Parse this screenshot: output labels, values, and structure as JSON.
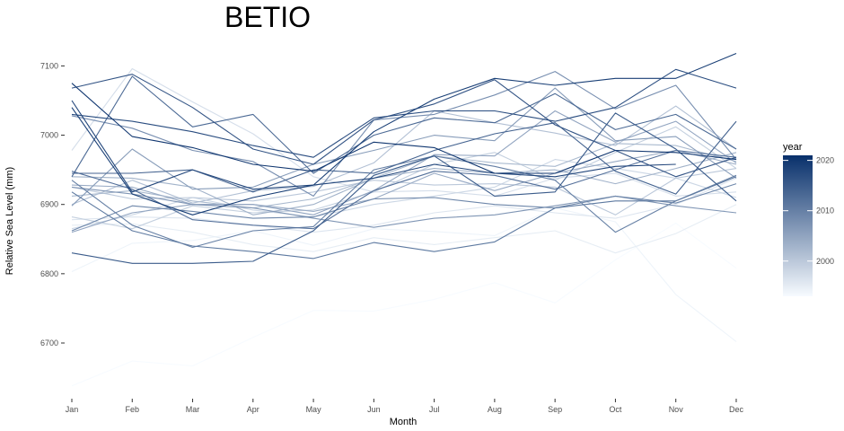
{
  "chart_data": {
    "type": "line",
    "title": "BETIO",
    "xlabel": "Month",
    "ylabel": "Relative Sea Level (mm)",
    "categories": [
      "Jan",
      "Feb",
      "Mar",
      "Apr",
      "May",
      "Jun",
      "Jul",
      "Aug",
      "Sep",
      "Oct",
      "Nov",
      "Dec"
    ],
    "y_ticks": [
      6700,
      6800,
      6900,
      7000,
      7100
    ],
    "y_tick_labels": [
      "6700",
      "6800",
      "6900",
      "7000",
      "7100"
    ],
    "ylim": [
      6632,
      7125
    ],
    "grid": false,
    "legend": {
      "title": "year",
      "position": "right",
      "type": "colorbar",
      "range": [
        1993,
        2021
      ],
      "ticks": [
        2000,
        2010,
        2020
      ],
      "tick_labels": [
        "2000",
        "2010",
        "2020"
      ],
      "color_low": "#f7fbff",
      "color_high": "#08306b"
    },
    "series": [
      {
        "year": 1993,
        "values": [
          6638,
          6674,
          6667,
          6708,
          6747,
          6746,
          6763,
          6787,
          6758,
          6820,
          6873,
          6808
        ]
      },
      {
        "year": 1994,
        "values": [
          6803,
          6844,
          6848,
          6862,
          6841,
          6865,
          6861,
          6855,
          6895,
          6875,
          6770,
          6702
        ]
      },
      {
        "year": 1995,
        "values": [
          6870,
          6872,
          6860,
          6842,
          6832,
          6852,
          6842,
          6852,
          6862,
          6830,
          6858,
          6900
        ]
      },
      {
        "year": 1996,
        "values": [
          6878,
          6882,
          6880,
          6870,
          6860,
          6870,
          6888,
          6898,
          6888,
          6880,
          6900,
          6938
        ]
      },
      {
        "year": 1997,
        "values": [
          6978,
          7096,
          7048,
          7002,
          6940,
          6918,
          6920,
          6912,
          6938,
          6945,
          6912,
          6918
        ]
      },
      {
        "year": 1998,
        "values": [
          6865,
          6885,
          6910,
          6892,
          6882,
          6900,
          6912,
          6925,
          6965,
          6952,
          6938,
          6910
        ]
      },
      {
        "year": 1999,
        "values": [
          6882,
          6865,
          6898,
          6888,
          6892,
          6918,
          6958,
          6975,
          6935,
          6975,
          7012,
          6952
        ]
      },
      {
        "year": 2000,
        "values": [
          6925,
          6908,
          6910,
          6905,
          6918,
          6935,
          6928,
          6930,
          6925,
          6885,
          6938,
          6952
        ]
      },
      {
        "year": 2001,
        "values": [
          6900,
          6935,
          6902,
          6920,
          6926,
          6960,
          7035,
          7018,
          7003,
          6985,
          7042,
          6980
        ]
      },
      {
        "year": 2002,
        "values": [
          6912,
          6920,
          6905,
          6895,
          6908,
          6938,
          6970,
          6960,
          6955,
          6988,
          6985,
          6962
        ]
      },
      {
        "year": 2003,
        "values": [
          6940,
          6938,
          6925,
          6885,
          6900,
          6938,
          6952,
          6945,
          6950,
          6930,
          6952,
          6975
        ]
      },
      {
        "year": 2004,
        "values": [
          6928,
          6925,
          6900,
          6900,
          6890,
          6908,
          6945,
          6920,
          6945,
          6962,
          6978,
          6958
        ]
      },
      {
        "year": 2005,
        "values": [
          6860,
          6888,
          6900,
          6900,
          6885,
          6920,
          6972,
          6970,
          7035,
          6990,
          7020,
          6960
        ]
      },
      {
        "year": 2006,
        "values": [
          6898,
          6980,
          6922,
          6925,
          6958,
          6978,
          7000,
          6992,
          7068,
          6992,
          6998,
          6938
        ]
      },
      {
        "year": 2007,
        "values": [
          6925,
          6915,
          6900,
          6895,
          6880,
          6867,
          6880,
          6885,
          6898,
          6912,
          6898,
          6888
        ]
      },
      {
        "year": 2008,
        "values": [
          7028,
          7010,
          6978,
          6962,
          6912,
          7022,
          7030,
          7058,
          7092,
          7038,
          7072,
          6965
        ]
      },
      {
        "year": 2009,
        "values": [
          6862,
          6898,
          6890,
          6880,
          6882,
          6908,
          6910,
          6900,
          6895,
          6912,
          6902,
          6930
        ]
      },
      {
        "year": 2010,
        "values": [
          6935,
          6870,
          6838,
          6862,
          6868,
          6950,
          6970,
          6955,
          6935,
          6860,
          6905,
          6942
        ]
      },
      {
        "year": 2011,
        "values": [
          6918,
          6862,
          6840,
          6832,
          6822,
          6845,
          6832,
          6846,
          6895,
          6905,
          6905,
          6940
        ]
      },
      {
        "year": 2012,
        "values": [
          6948,
          6922,
          6878,
          6870,
          6865,
          6920,
          6948,
          6942,
          6922,
          6950,
          6978,
          6968
        ]
      },
      {
        "year": 2013,
        "values": [
          6940,
          7085,
          7012,
          7030,
          6945,
          7000,
          7025,
          7018,
          7060,
          7008,
          7030,
          6980
        ]
      },
      {
        "year": 2014,
        "values": [
          6945,
          6945,
          6950,
          6918,
          6950,
          6945,
          6978,
          7002,
          7018,
          6948,
          6915,
          7020
        ]
      },
      {
        "year": 2015,
        "values": [
          6830,
          6815,
          6815,
          6818,
          6862,
          6942,
          6970,
          6912,
          6918,
          7032,
          6980,
          6905
        ]
      },
      {
        "year": 2016,
        "values": [
          7068,
          7088,
          7040,
          6980,
          6958,
          7022,
          7045,
          7080,
          7015,
          6978,
          6940,
          6968
        ]
      },
      {
        "year": 2017,
        "values": [
          7030,
          7020,
          7005,
          6985,
          6968,
          7025,
          7035,
          7035,
          7020,
          7040,
          7095,
          7068
        ]
      },
      {
        "year": 2018,
        "values": [
          7050,
          6918,
          6950,
          6922,
          6928,
          6938,
          6958,
          6945,
          6940,
          6955,
          6958,
          null
        ]
      },
      {
        "year": 2019,
        "values": [
          7040,
          6915,
          6885,
          6910,
          6928,
          7005,
          7052,
          7082,
          7072,
          7082,
          7082,
          7118
        ]
      },
      {
        "year": 2020,
        "values": [
          7075,
          6998,
          6982,
          6958,
          6948,
          6990,
          6982,
          6945,
          6945,
          6978,
          6975,
          6965
        ]
      }
    ]
  }
}
